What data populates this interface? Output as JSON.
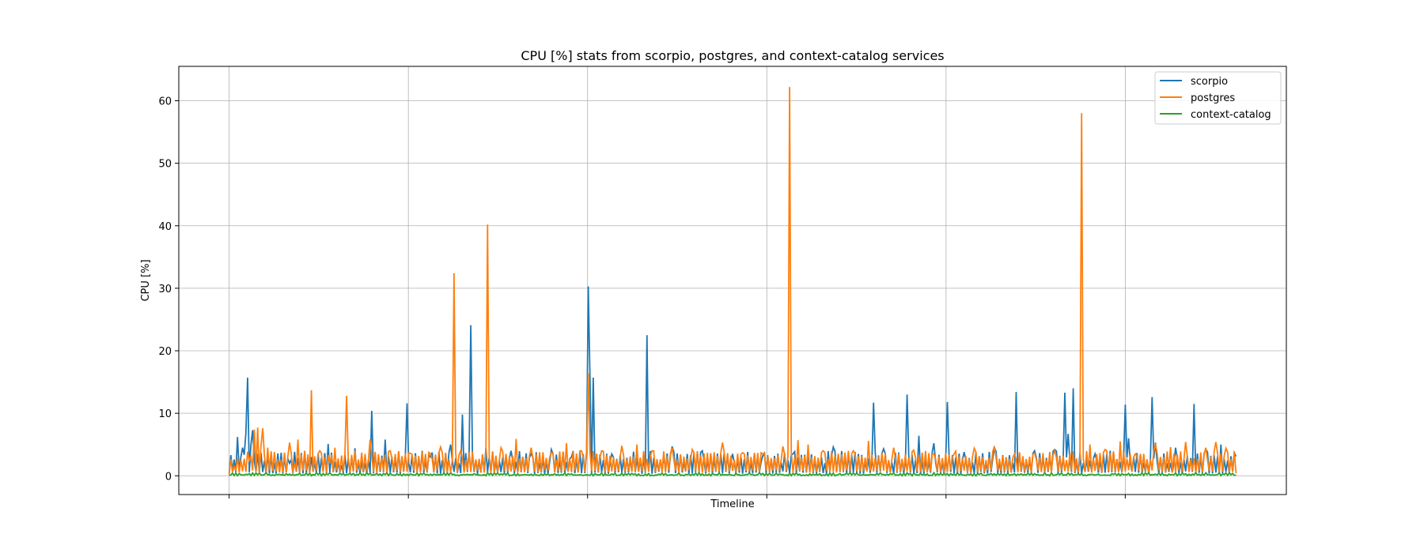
{
  "chart_data": {
    "type": "line",
    "title": "CPU [%] stats from scorpio, postgres, and context-catalog services",
    "xlabel": "Timeline",
    "ylabel": "CPU [%]",
    "ylim": [
      -3,
      65.5
    ],
    "xlim": [
      -0.05,
      1.05
    ],
    "yticks": [
      0,
      10,
      20,
      30,
      40,
      50,
      60
    ],
    "xgrid": [
      0.0,
      0.178,
      0.356,
      0.534,
      0.712,
      0.89
    ],
    "grid": true,
    "legend_position": "top-right",
    "series": [
      {
        "name": "scorpio",
        "color": "#1f77b4",
        "baseline": 0.3,
        "noise": [
          2.0,
          4.0
        ],
        "points": [
          [
            0.0,
            0.3
          ],
          [
            0.004,
            0.8
          ],
          [
            0.008,
            6.2
          ],
          [
            0.011,
            3.0
          ],
          [
            0.014,
            4.5
          ],
          [
            0.017,
            6.8
          ],
          [
            0.018,
            15.7
          ],
          [
            0.021,
            5.0
          ],
          [
            0.024,
            7.3
          ],
          [
            0.028,
            3.5
          ],
          [
            0.035,
            2.4
          ],
          [
            0.045,
            2.1
          ],
          [
            0.06,
            2.0
          ],
          [
            0.075,
            3.8
          ],
          [
            0.085,
            2.0
          ],
          [
            0.098,
            5.1
          ],
          [
            0.112,
            1.7
          ],
          [
            0.125,
            4.4
          ],
          [
            0.142,
            10.4
          ],
          [
            0.155,
            5.8
          ],
          [
            0.176,
            11.6
          ],
          [
            0.2,
            3.0
          ],
          [
            0.22,
            5.0
          ],
          [
            0.232,
            9.8
          ],
          [
            0.24,
            24.1
          ],
          [
            0.255,
            4.5
          ],
          [
            0.28,
            4.0
          ],
          [
            0.3,
            3.5
          ],
          [
            0.32,
            4.2
          ],
          [
            0.34,
            3.0
          ],
          [
            0.356,
            30.3
          ],
          [
            0.358,
            16.0
          ],
          [
            0.361,
            15.7
          ],
          [
            0.38,
            3.5
          ],
          [
            0.415,
            22.5
          ],
          [
            0.44,
            4.7
          ],
          [
            0.47,
            4.0
          ],
          [
            0.5,
            3.5
          ],
          [
            0.53,
            3.2
          ],
          [
            0.56,
            3.5
          ],
          [
            0.6,
            4.6
          ],
          [
            0.625,
            3.5
          ],
          [
            0.64,
            11.7
          ],
          [
            0.65,
            4.3
          ],
          [
            0.673,
            13.0
          ],
          [
            0.685,
            6.4
          ],
          [
            0.7,
            5.2
          ],
          [
            0.713,
            11.8
          ],
          [
            0.73,
            3.8
          ],
          [
            0.76,
            4.5
          ],
          [
            0.782,
            13.4
          ],
          [
            0.8,
            4.0
          ],
          [
            0.82,
            4.2
          ],
          [
            0.83,
            13.3
          ],
          [
            0.834,
            6.7
          ],
          [
            0.838,
            14.0
          ],
          [
            0.86,
            3.5
          ],
          [
            0.875,
            4.0
          ],
          [
            0.89,
            11.4
          ],
          [
            0.893,
            6.0
          ],
          [
            0.916,
            12.6
          ],
          [
            0.92,
            5.3
          ],
          [
            0.94,
            4.5
          ],
          [
            0.958,
            11.5
          ],
          [
            0.97,
            4.2
          ],
          [
            0.985,
            5.0
          ],
          [
            1.0,
            3.1
          ]
        ]
      },
      {
        "name": "postgres",
        "color": "#ff7f0e",
        "baseline": 0.5,
        "noise": [
          2.5,
          4.0
        ],
        "points": [
          [
            0.0,
            0.2
          ],
          [
            0.005,
            1.5
          ],
          [
            0.012,
            2.5
          ],
          [
            0.02,
            2.3
          ],
          [
            0.025,
            7.4
          ],
          [
            0.028,
            7.7
          ],
          [
            0.031,
            4.8
          ],
          [
            0.034,
            7.6
          ],
          [
            0.038,
            4.5
          ],
          [
            0.045,
            3.8
          ],
          [
            0.055,
            3.7
          ],
          [
            0.06,
            5.3
          ],
          [
            0.065,
            2.0
          ],
          [
            0.068,
            5.8
          ],
          [
            0.075,
            4.0
          ],
          [
            0.081,
            13.7
          ],
          [
            0.09,
            4.0
          ],
          [
            0.1,
            2.0
          ],
          [
            0.105,
            4.5
          ],
          [
            0.117,
            12.8
          ],
          [
            0.125,
            4.0
          ],
          [
            0.135,
            3.5
          ],
          [
            0.14,
            5.8
          ],
          [
            0.16,
            4.0
          ],
          [
            0.18,
            3.6
          ],
          [
            0.2,
            3.5
          ],
          [
            0.21,
            4.6
          ],
          [
            0.224,
            32.4
          ],
          [
            0.23,
            4.0
          ],
          [
            0.256,
            40.2
          ],
          [
            0.27,
            4.5
          ],
          [
            0.285,
            5.9
          ],
          [
            0.3,
            4.5
          ],
          [
            0.32,
            3.7
          ],
          [
            0.335,
            5.2
          ],
          [
            0.35,
            4.0
          ],
          [
            0.356,
            16.4
          ],
          [
            0.37,
            4.0
          ],
          [
            0.39,
            4.8
          ],
          [
            0.405,
            5.0
          ],
          [
            0.42,
            4.0
          ],
          [
            0.44,
            4.5
          ],
          [
            0.46,
            4.2
          ],
          [
            0.49,
            5.3
          ],
          [
            0.51,
            3.7
          ],
          [
            0.53,
            3.5
          ],
          [
            0.55,
            4.7
          ],
          [
            0.557,
            62.2
          ],
          [
            0.565,
            5.7
          ],
          [
            0.575,
            5.0
          ],
          [
            0.59,
            4.0
          ],
          [
            0.62,
            4.0
          ],
          [
            0.635,
            5.6
          ],
          [
            0.66,
            4.5
          ],
          [
            0.68,
            4.1
          ],
          [
            0.7,
            3.5
          ],
          [
            0.72,
            3.5
          ],
          [
            0.74,
            4.4
          ],
          [
            0.76,
            4.7
          ],
          [
            0.78,
            3.5
          ],
          [
            0.8,
            3.6
          ],
          [
            0.82,
            4.0
          ],
          [
            0.835,
            3.7
          ],
          [
            0.846,
            58.0
          ],
          [
            0.855,
            5.0
          ],
          [
            0.87,
            4.2
          ],
          [
            0.885,
            5.5
          ],
          [
            0.9,
            3.5
          ],
          [
            0.92,
            5.1
          ],
          [
            0.935,
            4.6
          ],
          [
            0.95,
            5.4
          ],
          [
            0.97,
            4.5
          ],
          [
            0.98,
            5.4
          ],
          [
            0.99,
            4.4
          ],
          [
            1.0,
            0.4
          ]
        ]
      },
      {
        "name": "context-catalog",
        "color": "#2ca02c",
        "baseline": 0.1,
        "noise": [
          0.0,
          0.2
        ],
        "points": [
          [
            0.0,
            0.1
          ],
          [
            0.25,
            0.1
          ],
          [
            0.5,
            0.1
          ],
          [
            0.75,
            0.1
          ],
          [
            1.0,
            0.1
          ]
        ]
      }
    ]
  }
}
